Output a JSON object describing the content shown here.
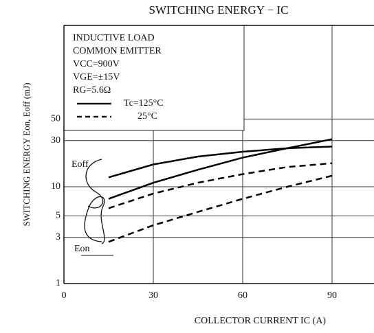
{
  "chart_data": {
    "type": "line",
    "title": "SWITCHING ENERGY − IC",
    "x_label": "COLLECTOR CURRENT  IC  (A)",
    "y_label": "SWITCHING ENERGY   Eon, Eoff  (mJ)",
    "conditions": [
      "INDUCTIVE LOAD",
      "COMMON EMITTER",
      "VCC=900V",
      "VGE=±15V",
      "RG=5.6Ω"
    ],
    "legend": [
      {
        "label": "Tc=125°C",
        "dash": false
      },
      {
        "label": "25°C",
        "dash": true
      }
    ],
    "annotations": [
      "Eoff",
      "Eon"
    ],
    "x": [
      15,
      30,
      45,
      60,
      75,
      90
    ],
    "series": [
      {
        "color": "#000000",
        "dash": false,
        "values": [
          12.5,
          17,
          20.5,
          23,
          25,
          26
        ]
      },
      {
        "color": "#000000",
        "dash": false,
        "values": [
          7.5,
          11,
          15,
          20,
          25,
          31
        ]
      },
      {
        "color": "#000000",
        "dash": true,
        "values": [
          6,
          8.5,
          11,
          13.5,
          16,
          17.5
        ]
      },
      {
        "color": "#000000",
        "dash": true,
        "values": [
          2.7,
          4,
          5.5,
          7.5,
          10,
          13
        ]
      }
    ],
    "xlim": [
      0,
      104
    ],
    "xticks": [
      0,
      30,
      60,
      90
    ],
    "ylim": [
      1,
      464
    ],
    "yticks": [
      1,
      3,
      5,
      10,
      30,
      50
    ],
    "log_y": true,
    "grid": true
  }
}
